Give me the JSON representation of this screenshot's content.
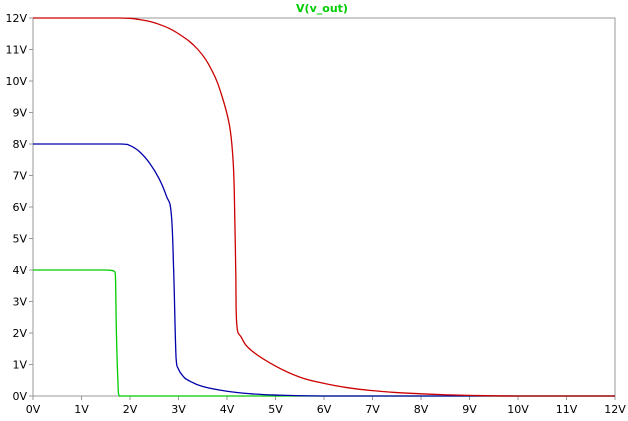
{
  "chart_data": {
    "type": "line",
    "title": "V(v_out)",
    "xlabel": "",
    "ylabel": "",
    "xlim": [
      0,
      12
    ],
    "ylim": [
      0,
      12
    ],
    "grid": false,
    "x_ticks": [
      "0V",
      "1V",
      "2V",
      "3V",
      "4V",
      "5V",
      "6V",
      "7V",
      "8V",
      "9V",
      "10V",
      "11V",
      "12V"
    ],
    "y_ticks": [
      "0V",
      "1V",
      "2V",
      "3V",
      "4V",
      "5V",
      "6V",
      "7V",
      "8V",
      "9V",
      "10V",
      "11V",
      "12V"
    ],
    "series": [
      {
        "color": "#00cc00",
        "x": [
          0,
          0.5,
          1.0,
          1.4,
          1.6,
          1.68,
          1.7,
          1.72,
          1.75,
          1.78,
          2.0,
          4.0,
          8.0,
          12.0
        ],
        "y": [
          4.0,
          4.0,
          4.0,
          4.0,
          3.99,
          3.95,
          3.8,
          2.0,
          0.5,
          0.0,
          0.0,
          0.0,
          0.0,
          0.0
        ]
      },
      {
        "color": "#0000aa",
        "x": [
          0,
          1.0,
          1.8,
          2.0,
          2.2,
          2.4,
          2.6,
          2.75,
          2.85,
          2.9,
          2.95,
          3.0,
          3.1,
          3.2,
          3.5,
          4.0,
          4.5,
          5.0,
          6.0,
          8.0,
          12.0
        ],
        "y": [
          8.0,
          8.0,
          8.0,
          7.95,
          7.75,
          7.4,
          6.9,
          6.35,
          5.8,
          4.0,
          1.2,
          0.85,
          0.62,
          0.5,
          0.3,
          0.15,
          0.07,
          0.03,
          0.0,
          0.0,
          0.0
        ],
        "curve_note": ""
      },
      {
        "color": "#cc0000",
        "x": [
          0,
          1.0,
          1.8,
          2.2,
          2.6,
          3.0,
          3.4,
          3.7,
          3.9,
          4.05,
          4.12,
          4.15,
          4.18,
          4.2,
          4.3,
          4.5,
          5.0,
          5.5,
          6.0,
          6.5,
          7.0,
          7.5,
          8.0,
          8.5,
          9.0,
          10.0,
          12.0
        ],
        "y": [
          12.0,
          12.0,
          12.0,
          11.95,
          11.8,
          11.5,
          11.0,
          10.3,
          9.5,
          8.6,
          7.6,
          6.5,
          4.0,
          2.3,
          1.85,
          1.45,
          0.95,
          0.6,
          0.4,
          0.26,
          0.17,
          0.11,
          0.07,
          0.04,
          0.02,
          0.0,
          0.0
        ]
      }
    ],
    "axis_color": "#999999",
    "title_color": "#00cc00",
    "tick_label_color": "#000000"
  }
}
